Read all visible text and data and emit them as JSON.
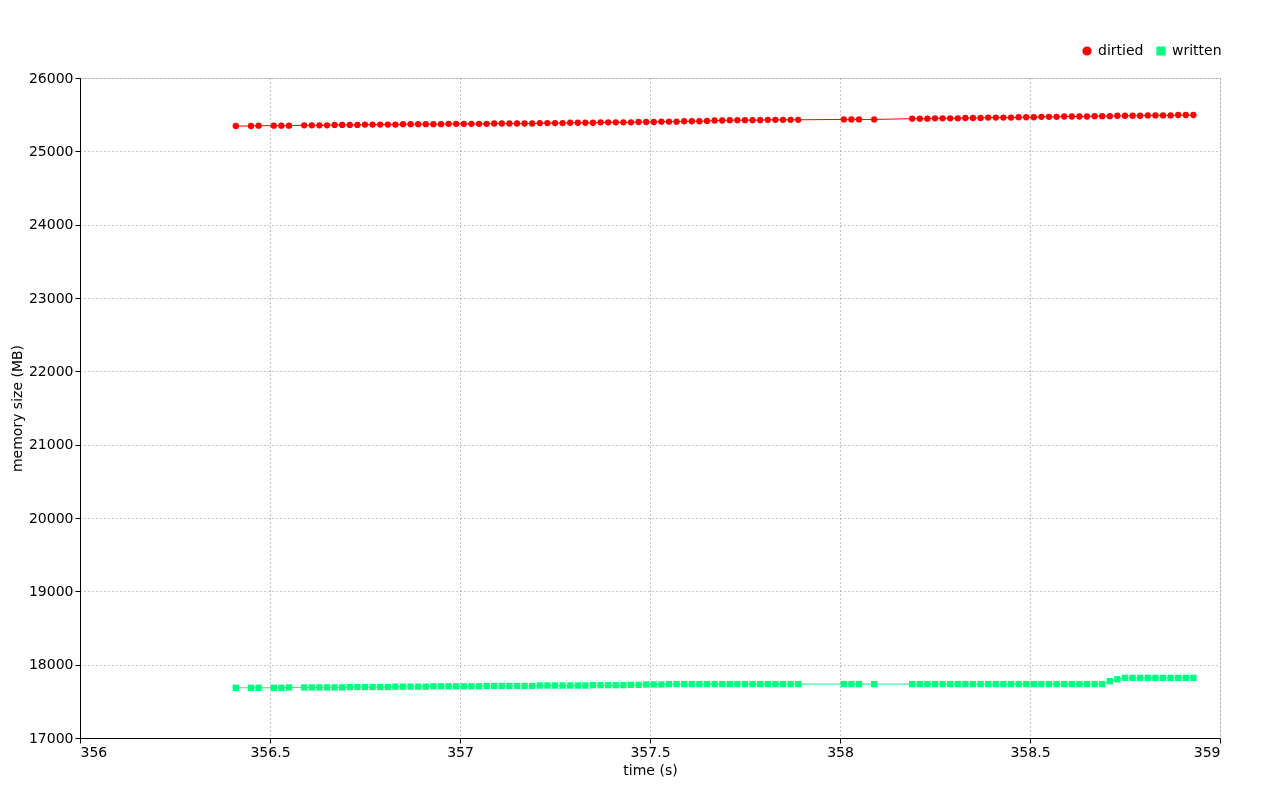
{
  "chart_data": {
    "type": "line",
    "xlabel": "time (s)",
    "ylabel": "memory size (MB)",
    "x": [
      356.41,
      356.45,
      356.47,
      356.51,
      356.53,
      356.55,
      356.59,
      356.61,
      356.63,
      356.65,
      356.67,
      356.69,
      356.71,
      356.73,
      356.75,
      356.77,
      356.79,
      356.81,
      356.83,
      356.85,
      356.87,
      356.89,
      356.91,
      356.93,
      356.95,
      356.97,
      356.99,
      357.01,
      357.03,
      357.05,
      357.07,
      357.09,
      357.11,
      357.13,
      357.15,
      357.17,
      357.19,
      357.21,
      357.23,
      357.25,
      357.27,
      357.29,
      357.31,
      357.33,
      357.35,
      357.37,
      357.39,
      357.41,
      357.43,
      357.45,
      357.47,
      357.49,
      357.51,
      357.53,
      357.55,
      357.57,
      357.59,
      357.61,
      357.63,
      357.65,
      357.67,
      357.69,
      357.71,
      357.73,
      357.75,
      357.77,
      357.79,
      357.81,
      357.83,
      357.85,
      357.87,
      357.89,
      358.01,
      358.03,
      358.05,
      358.09,
      358.19,
      358.21,
      358.23,
      358.25,
      358.27,
      358.29,
      358.31,
      358.33,
      358.35,
      358.37,
      358.39,
      358.41,
      358.43,
      358.45,
      358.47,
      358.49,
      358.51,
      358.53,
      358.55,
      358.57,
      358.59,
      358.61,
      358.63,
      358.65,
      358.67,
      358.69,
      358.71,
      358.73,
      358.75,
      358.77,
      358.79,
      358.81,
      358.83,
      358.85,
      358.87,
      358.89,
      358.91,
      358.93
    ],
    "series": [
      {
        "name": "dirtied",
        "color": "#ff0000",
        "marker": "circle",
        "values": [
          25345,
          25345,
          25350,
          25350,
          25350,
          25350,
          25355,
          25355,
          25355,
          25355,
          25360,
          25360,
          25360,
          25360,
          25365,
          25365,
          25365,
          25365,
          25365,
          25370,
          25370,
          25370,
          25370,
          25370,
          25370,
          25375,
          25375,
          25375,
          25375,
          25375,
          25375,
          25380,
          25380,
          25380,
          25380,
          25380,
          25380,
          25385,
          25385,
          25385,
          25385,
          25390,
          25390,
          25390,
          25390,
          25395,
          25395,
          25395,
          25395,
          25395,
          25400,
          25400,
          25400,
          25405,
          25405,
          25405,
          25410,
          25410,
          25410,
          25415,
          25420,
          25420,
          25425,
          25425,
          25425,
          25425,
          25425,
          25430,
          25430,
          25430,
          25430,
          25430,
          25435,
          25435,
          25435,
          25435,
          25445,
          25445,
          25445,
          25450,
          25450,
          25450,
          25450,
          25455,
          25455,
          25455,
          25460,
          25460,
          25460,
          25460,
          25465,
          25465,
          25465,
          25470,
          25470,
          25470,
          25475,
          25475,
          25475,
          25475,
          25480,
          25480,
          25480,
          25485,
          25485,
          25485,
          25485,
          25490,
          25490,
          25490,
          25490,
          25495,
          25495,
          25495
        ]
      },
      {
        "name": "written",
        "color": "#00ff7f",
        "marker": "square",
        "values": [
          17685,
          17685,
          17685,
          17685,
          17685,
          17690,
          17690,
          17690,
          17690,
          17690,
          17690,
          17690,
          17695,
          17695,
          17695,
          17695,
          17695,
          17695,
          17700,
          17700,
          17700,
          17700,
          17700,
          17705,
          17705,
          17705,
          17705,
          17705,
          17705,
          17705,
          17710,
          17710,
          17710,
          17710,
          17710,
          17710,
          17710,
          17715,
          17715,
          17715,
          17715,
          17715,
          17715,
          17715,
          17720,
          17720,
          17720,
          17720,
          17720,
          17725,
          17725,
          17730,
          17730,
          17730,
          17735,
          17735,
          17735,
          17735,
          17735,
          17735,
          17735,
          17735,
          17735,
          17735,
          17735,
          17735,
          17735,
          17735,
          17735,
          17735,
          17735,
          17735,
          17735,
          17735,
          17735,
          17735,
          17735,
          17735,
          17735,
          17735,
          17735,
          17735,
          17735,
          17735,
          17735,
          17735,
          17735,
          17735,
          17735,
          17735,
          17735,
          17735,
          17735,
          17735,
          17735,
          17735,
          17735,
          17735,
          17735,
          17735,
          17735,
          17735,
          17775,
          17800,
          17820,
          17820,
          17820,
          17820,
          17820,
          17820,
          17820,
          17820,
          17820,
          17820
        ]
      }
    ],
    "xlim": [
      356,
      359
    ],
    "xticks": [
      356,
      356.5,
      357,
      357.5,
      358,
      358.5,
      359
    ],
    "ylim": [
      17000,
      26000
    ],
    "yticks": [
      17000,
      18000,
      19000,
      20000,
      21000,
      22000,
      23000,
      24000,
      25000,
      26000
    ],
    "grid": true,
    "legend": "top right",
    "line_style": "solid"
  }
}
